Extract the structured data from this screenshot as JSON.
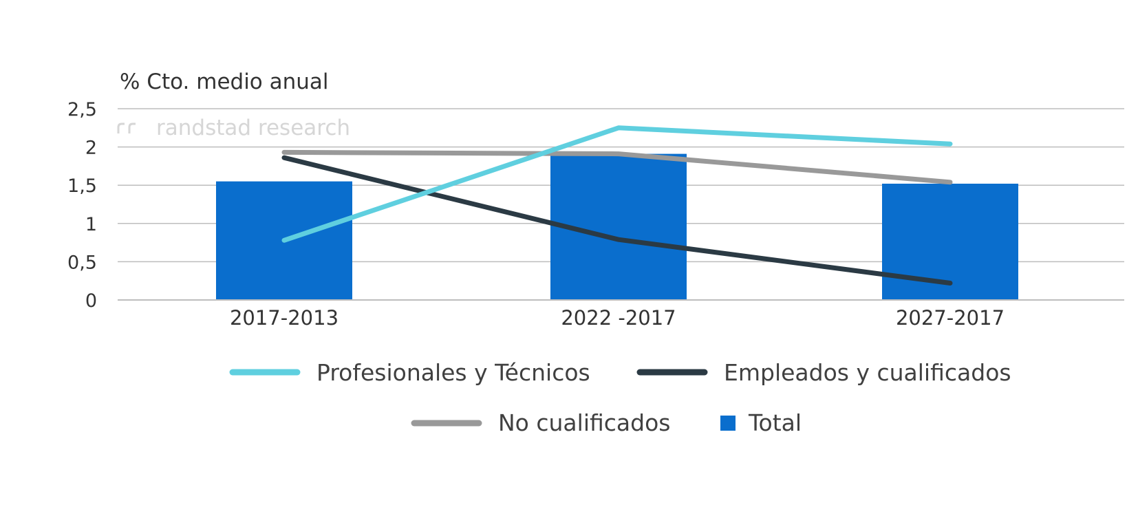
{
  "chart_data": {
    "type": "bar",
    "ylabel": "% Cto. medio anual",
    "watermark": "randstad research",
    "ylim": [
      0,
      2.5
    ],
    "yticks": [
      0,
      0.5,
      1,
      1.5,
      2,
      2.5
    ],
    "ytick_labels": [
      "0",
      "0,5",
      "1",
      "1,5",
      "2",
      "2,5"
    ],
    "categories": [
      "2017-2013",
      "2022 -2017",
      "2027-2017"
    ],
    "grid": true,
    "legend_position": "bottom",
    "series": [
      {
        "name": "Total",
        "type": "bar",
        "color": "#0a6ecd",
        "values": [
          1.55,
          1.91,
          1.52
        ]
      },
      {
        "name": "Profesionales y Técnicos",
        "type": "line",
        "color": "#5fcfdf",
        "values": [
          0.78,
          2.25,
          2.04
        ]
      },
      {
        "name": "Empleados y cualificados",
        "type": "line",
        "color": "#2b3a44",
        "values": [
          1.86,
          0.79,
          0.22
        ]
      },
      {
        "name": "No cualificados",
        "type": "line",
        "color": "#999999",
        "values": [
          1.93,
          1.91,
          1.54
        ]
      }
    ],
    "legend": [
      {
        "label": "Profesionales y Técnicos",
        "marker": "line",
        "color": "#5fcfdf"
      },
      {
        "label": "Empleados y cualificados",
        "marker": "line",
        "color": "#2b3a44"
      },
      {
        "label": "No cualificados",
        "marker": "line",
        "color": "#999999"
      },
      {
        "label": "Total",
        "marker": "square",
        "color": "#0a6ecd"
      }
    ]
  }
}
